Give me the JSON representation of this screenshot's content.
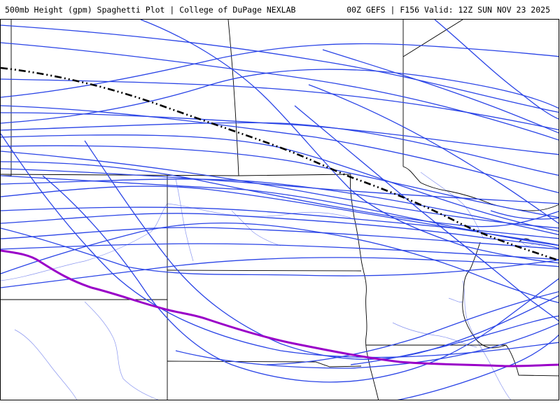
{
  "header": {
    "title_left": "500mb Height (gpm) Spaghetti Plot | College of DuPage NEXLAB",
    "title_right": "00Z GEFS | F156 Valid: 12Z SUN NOV 23 2025"
  },
  "colors": {
    "member_line": "#2a44e6",
    "mean_line": "#000000",
    "reference_contour": "#9a00c8",
    "state_border": "#000000",
    "river": "#8a96f0",
    "background": "#ffffff"
  },
  "legend_semantics": {
    "ensemble_members": "blue-solid",
    "ensemble_mean": "black-dash-dot",
    "reference": "purple-solid"
  }
}
